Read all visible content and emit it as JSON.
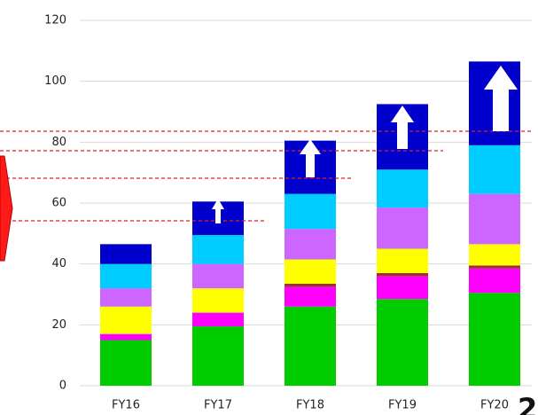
{
  "chart_data": {
    "type": "stacked_bar",
    "categories": [
      "FY16",
      "FY17",
      "FY18",
      "FY19",
      "FY20"
    ],
    "series": [
      {
        "color": "#00cc00",
        "values": [
          15,
          19.5,
          26,
          28.5,
          30.5
        ]
      },
      {
        "color": "#ff00ff",
        "values": [
          2,
          4.5,
          6.5,
          7.5,
          8
        ]
      },
      {
        "color": "#993333",
        "values": [
          0,
          0,
          1,
          1,
          1
        ]
      },
      {
        "color": "#ffff00",
        "values": [
          9,
          8,
          8,
          8,
          7
        ]
      },
      {
        "color": "#cc66ff",
        "values": [
          6,
          8,
          10,
          13.5,
          16.5
        ]
      },
      {
        "color": "#00ccff",
        "values": [
          8,
          9.5,
          11.5,
          12.5,
          16
        ]
      },
      {
        "color": "#0000cc",
        "values": [
          6.5,
          11,
          17.5,
          21.5,
          27.5
        ]
      }
    ],
    "ylim": [
      0,
      120
    ],
    "yticks": [
      0,
      20,
      40,
      60,
      80,
      100,
      120
    ],
    "grid": true,
    "annotation": "2"
  }
}
